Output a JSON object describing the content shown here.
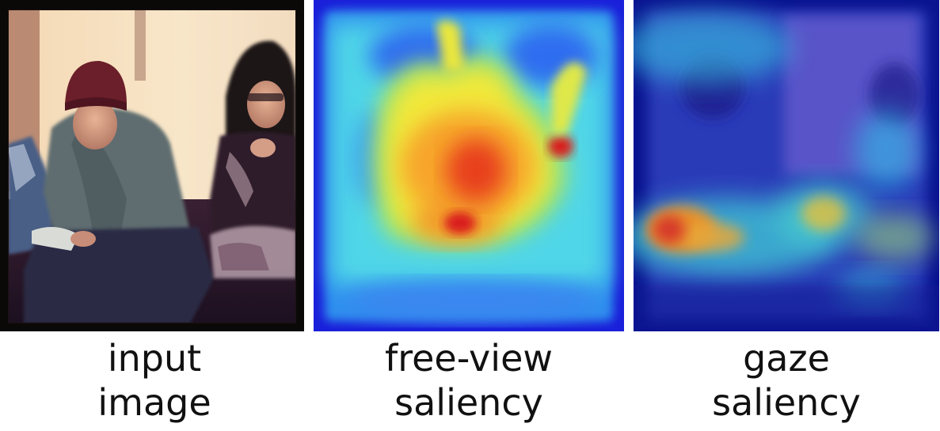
{
  "panels": [
    {
      "caption_line1": "input",
      "caption_line2": "image"
    },
    {
      "caption_line1": "free-view",
      "caption_line2": "saliency"
    },
    {
      "caption_line1": "gaze",
      "caption_line2": "saliency"
    }
  ],
  "colors": {
    "photo_wall": "#f6dfbf",
    "photo_dark": "#1d1020",
    "hat": "#6b1f2a",
    "hoodie": "#5e6d70",
    "saliency_low": "#1a1fd9",
    "saliency_mid": "#34d7e0",
    "saliency_high": "#f5e52a",
    "saliency_peak": "#e21a1a"
  }
}
